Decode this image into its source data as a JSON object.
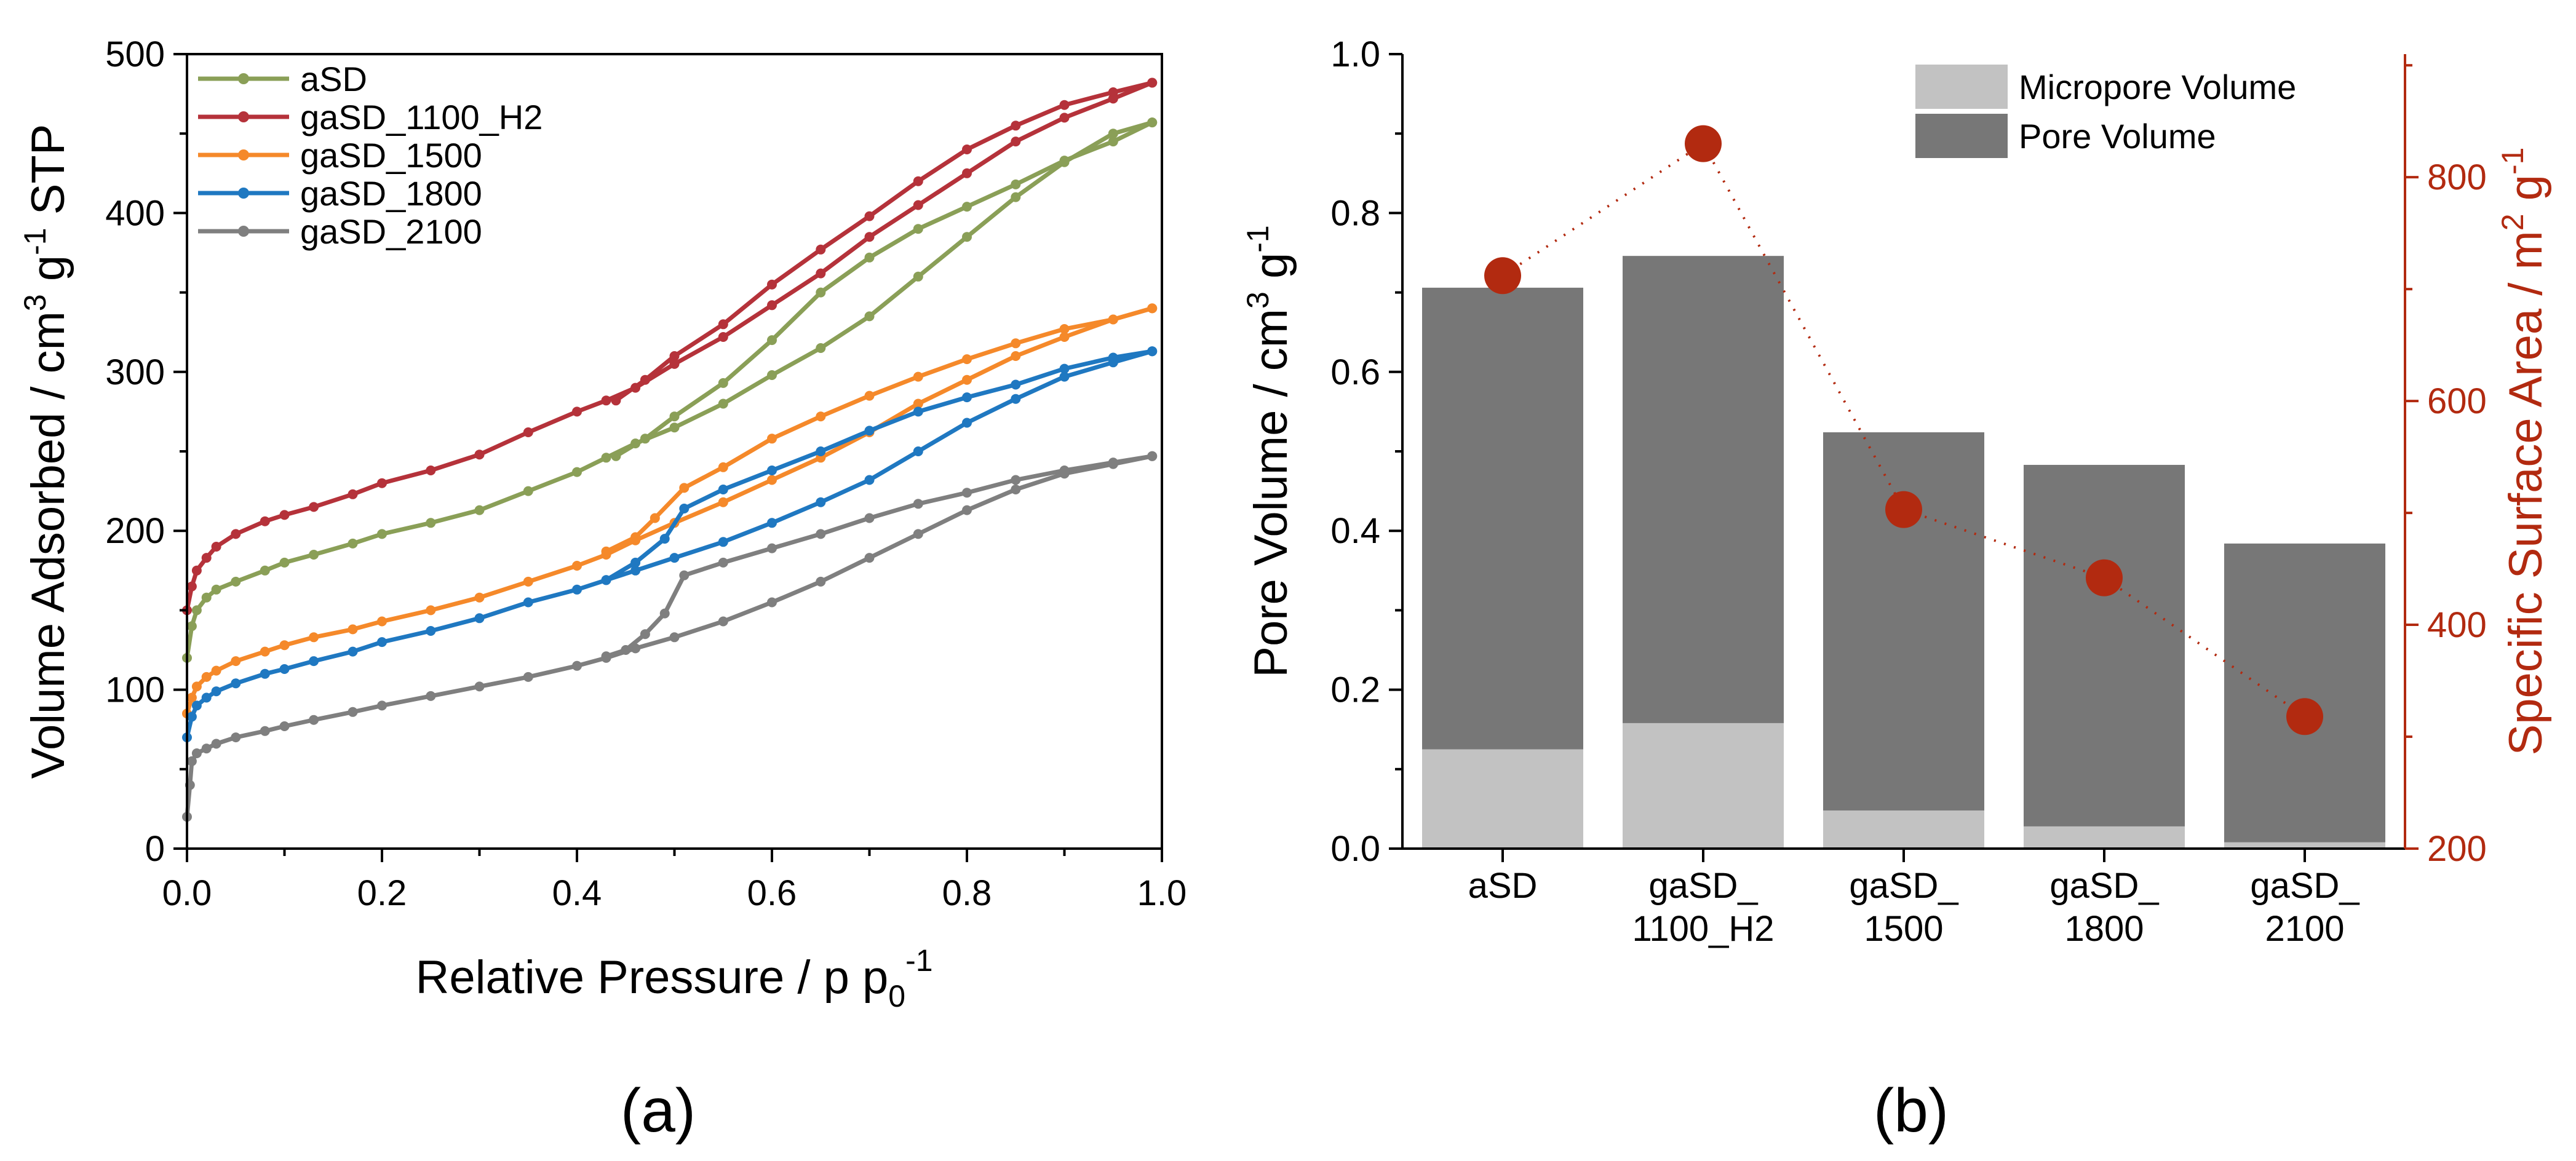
{
  "colors": {
    "aSD": "#8a9f57",
    "gaSD_1100_H2": "#b5323a",
    "gaSD_1500": "#f5892a",
    "gaSD_1800": "#1f78c1",
    "gaSD_2100": "#7f7f7f",
    "micropore": "#c2c2c2",
    "pore": "#777777",
    "ssa": "#b22a10"
  },
  "panel_labels": {
    "a": "(a)",
    "b": "(b)"
  },
  "chart_data": [
    {
      "type": "line",
      "panel": "(a)",
      "xlabel": "Relative Pressure / p p",
      "xlabel_sub": "0",
      "xlabel_sup": "-1",
      "ylabel": "Volume Adsorbed / cm",
      "ylabel_sup1": "3",
      "ylabel_mid": " g",
      "ylabel_sup2": "-1",
      "ylabel_end": " STP",
      "xlim": [
        0,
        1.0
      ],
      "ylim": [
        0,
        500
      ],
      "xticks": [
        "0.0",
        "0.2",
        "0.4",
        "0.6",
        "0.8",
        "1.0"
      ],
      "yticks": [
        "0",
        "100",
        "200",
        "300",
        "400",
        "500"
      ],
      "legend": [
        "aSD",
        "gaSD_1100_H2",
        "gaSD_1500",
        "gaSD_1800",
        "gaSD_2100"
      ],
      "legend_position": "top-left",
      "series": [
        {
          "name": "aSD",
          "adsorption": [
            [
              0.0,
              120
            ],
            [
              0.005,
              140
            ],
            [
              0.01,
              150
            ],
            [
              0.02,
              158
            ],
            [
              0.03,
              163
            ],
            [
              0.05,
              168
            ],
            [
              0.08,
              175
            ],
            [
              0.1,
              180
            ],
            [
              0.13,
              185
            ],
            [
              0.17,
              192
            ],
            [
              0.2,
              198
            ],
            [
              0.25,
              205
            ],
            [
              0.3,
              213
            ],
            [
              0.35,
              225
            ],
            [
              0.4,
              237
            ],
            [
              0.43,
              246
            ],
            [
              0.46,
              255
            ],
            [
              0.5,
              265
            ],
            [
              0.55,
              280
            ],
            [
              0.6,
              298
            ],
            [
              0.65,
              315
            ],
            [
              0.7,
              335
            ],
            [
              0.75,
              360
            ],
            [
              0.8,
              385
            ],
            [
              0.85,
              410
            ],
            [
              0.9,
              432
            ],
            [
              0.95,
              450
            ],
            [
              0.99,
              457
            ]
          ],
          "desorption": [
            [
              0.99,
              457
            ],
            [
              0.95,
              445
            ],
            [
              0.9,
              433
            ],
            [
              0.85,
              418
            ],
            [
              0.8,
              404
            ],
            [
              0.75,
              390
            ],
            [
              0.7,
              372
            ],
            [
              0.65,
              350
            ],
            [
              0.6,
              320
            ],
            [
              0.55,
              293
            ],
            [
              0.5,
              272
            ],
            [
              0.47,
              258
            ],
            [
              0.44,
              247
            ]
          ]
        },
        {
          "name": "gaSD_1100_H2",
          "adsorption": [
            [
              0.0,
              150
            ],
            [
              0.005,
              165
            ],
            [
              0.01,
              175
            ],
            [
              0.02,
              183
            ],
            [
              0.03,
              190
            ],
            [
              0.05,
              198
            ],
            [
              0.08,
              206
            ],
            [
              0.1,
              210
            ],
            [
              0.13,
              215
            ],
            [
              0.17,
              223
            ],
            [
              0.2,
              230
            ],
            [
              0.25,
              238
            ],
            [
              0.3,
              248
            ],
            [
              0.35,
              262
            ],
            [
              0.4,
              275
            ],
            [
              0.43,
              282
            ],
            [
              0.46,
              290
            ],
            [
              0.5,
              305
            ],
            [
              0.55,
              322
            ],
            [
              0.6,
              342
            ],
            [
              0.65,
              362
            ],
            [
              0.7,
              385
            ],
            [
              0.75,
              405
            ],
            [
              0.8,
              425
            ],
            [
              0.85,
              445
            ],
            [
              0.9,
              460
            ],
            [
              0.95,
              472
            ],
            [
              0.99,
              482
            ]
          ],
          "desorption": [
            [
              0.99,
              482
            ],
            [
              0.95,
              476
            ],
            [
              0.9,
              468
            ],
            [
              0.85,
              455
            ],
            [
              0.8,
              440
            ],
            [
              0.75,
              420
            ],
            [
              0.7,
              398
            ],
            [
              0.65,
              377
            ],
            [
              0.6,
              355
            ],
            [
              0.55,
              330
            ],
            [
              0.5,
              310
            ],
            [
              0.47,
              295
            ],
            [
              0.44,
              282
            ]
          ]
        },
        {
          "name": "gaSD_1500",
          "adsorption": [
            [
              0.0,
              85
            ],
            [
              0.005,
              95
            ],
            [
              0.01,
              102
            ],
            [
              0.02,
              108
            ],
            [
              0.03,
              112
            ],
            [
              0.05,
              118
            ],
            [
              0.08,
              124
            ],
            [
              0.1,
              128
            ],
            [
              0.13,
              133
            ],
            [
              0.17,
              138
            ],
            [
              0.2,
              143
            ],
            [
              0.25,
              150
            ],
            [
              0.3,
              158
            ],
            [
              0.35,
              168
            ],
            [
              0.4,
              178
            ],
            [
              0.43,
              185
            ],
            [
              0.46,
              194
            ],
            [
              0.5,
              205
            ],
            [
              0.55,
              218
            ],
            [
              0.6,
              232
            ],
            [
              0.65,
              246
            ],
            [
              0.7,
              262
            ],
            [
              0.75,
              280
            ],
            [
              0.8,
              295
            ],
            [
              0.85,
              310
            ],
            [
              0.9,
              322
            ],
            [
              0.95,
              333
            ],
            [
              0.99,
              340
            ]
          ],
          "desorption": [
            [
              0.99,
              340
            ],
            [
              0.95,
              333
            ],
            [
              0.9,
              327
            ],
            [
              0.85,
              318
            ],
            [
              0.8,
              308
            ],
            [
              0.75,
              297
            ],
            [
              0.7,
              285
            ],
            [
              0.65,
              272
            ],
            [
              0.6,
              258
            ],
            [
              0.55,
              240
            ],
            [
              0.51,
              227
            ],
            [
              0.48,
              208
            ],
            [
              0.46,
              196
            ],
            [
              0.43,
              187
            ]
          ]
        },
        {
          "name": "gaSD_1800",
          "adsorption": [
            [
              0.0,
              70
            ],
            [
              0.005,
              83
            ],
            [
              0.01,
              90
            ],
            [
              0.02,
              95
            ],
            [
              0.03,
              99
            ],
            [
              0.05,
              104
            ],
            [
              0.08,
              110
            ],
            [
              0.1,
              113
            ],
            [
              0.13,
              118
            ],
            [
              0.17,
              124
            ],
            [
              0.2,
              130
            ],
            [
              0.25,
              137
            ],
            [
              0.3,
              145
            ],
            [
              0.35,
              155
            ],
            [
              0.4,
              163
            ],
            [
              0.43,
              169
            ],
            [
              0.46,
              175
            ],
            [
              0.5,
              183
            ],
            [
              0.55,
              193
            ],
            [
              0.6,
              205
            ],
            [
              0.65,
              218
            ],
            [
              0.7,
              232
            ],
            [
              0.75,
              250
            ],
            [
              0.8,
              268
            ],
            [
              0.85,
              283
            ],
            [
              0.9,
              297
            ],
            [
              0.95,
              306
            ],
            [
              0.99,
              313
            ]
          ],
          "desorption": [
            [
              0.99,
              313
            ],
            [
              0.95,
              309
            ],
            [
              0.9,
              302
            ],
            [
              0.85,
              292
            ],
            [
              0.8,
              284
            ],
            [
              0.75,
              275
            ],
            [
              0.7,
              263
            ],
            [
              0.65,
              250
            ],
            [
              0.6,
              238
            ],
            [
              0.55,
              226
            ],
            [
              0.51,
              214
            ],
            [
              0.49,
              195
            ],
            [
              0.46,
              180
            ],
            [
              0.43,
              169
            ]
          ]
        },
        {
          "name": "gaSD_2100",
          "adsorption": [
            [
              0.0,
              20
            ],
            [
              0.003,
              40
            ],
            [
              0.005,
              55
            ],
            [
              0.01,
              60
            ],
            [
              0.02,
              63
            ],
            [
              0.03,
              66
            ],
            [
              0.05,
              70
            ],
            [
              0.08,
              74
            ],
            [
              0.1,
              77
            ],
            [
              0.13,
              81
            ],
            [
              0.17,
              86
            ],
            [
              0.2,
              90
            ],
            [
              0.25,
              96
            ],
            [
              0.3,
              102
            ],
            [
              0.35,
              108
            ],
            [
              0.4,
              115
            ],
            [
              0.43,
              120
            ],
            [
              0.46,
              126
            ],
            [
              0.5,
              133
            ],
            [
              0.55,
              143
            ],
            [
              0.6,
              155
            ],
            [
              0.65,
              168
            ],
            [
              0.7,
              183
            ],
            [
              0.75,
              198
            ],
            [
              0.8,
              213
            ],
            [
              0.85,
              226
            ],
            [
              0.9,
              236
            ],
            [
              0.95,
              242
            ],
            [
              0.99,
              247
            ]
          ],
          "desorption": [
            [
              0.99,
              247
            ],
            [
              0.95,
              243
            ],
            [
              0.9,
              238
            ],
            [
              0.85,
              232
            ],
            [
              0.8,
              224
            ],
            [
              0.75,
              217
            ],
            [
              0.7,
              208
            ],
            [
              0.65,
              198
            ],
            [
              0.6,
              189
            ],
            [
              0.55,
              180
            ],
            [
              0.51,
              172
            ],
            [
              0.49,
              148
            ],
            [
              0.47,
              135
            ],
            [
              0.45,
              125
            ],
            [
              0.43,
              121
            ]
          ]
        }
      ]
    },
    {
      "type": "bar",
      "panel": "(b)",
      "categories": [
        [
          "aSD"
        ],
        [
          "gaSD_",
          "1100_H2"
        ],
        [
          "gaSD_",
          "1500"
        ],
        [
          "gaSD_",
          "1800"
        ],
        [
          "gaSD_",
          "2100"
        ]
      ],
      "series": [
        {
          "name": "Micropore Volume",
          "values": [
            0.125,
            0.158,
            0.048,
            0.028,
            0.008
          ]
        },
        {
          "name": "Pore Volume",
          "values": [
            0.706,
            0.746,
            0.524,
            0.483,
            0.384
          ]
        }
      ],
      "secondary_series": {
        "name": "Specific Surface Area",
        "values": [
          712,
          830,
          503,
          442,
          318
        ]
      },
      "ylabel": "Pore Volume / cm",
      "ylabel_sup1": "3",
      "ylabel_mid": " g",
      "ylabel_sup2": "-1",
      "ylim": [
        0,
        1.0
      ],
      "yticks": [
        "0.0",
        "0.2",
        "0.4",
        "0.6",
        "0.8",
        "1.0"
      ],
      "y2label": "Specific Surface Area / m",
      "y2label_sup1": "2",
      "y2label_mid": " g",
      "y2label_sup2": "-1",
      "y2lim": [
        200,
        910
      ],
      "y2ticks": [
        200,
        400,
        600,
        800
      ],
      "legend": [
        "Micropore Volume",
        "Pore Volume"
      ],
      "legend_position": "top-right"
    }
  ]
}
